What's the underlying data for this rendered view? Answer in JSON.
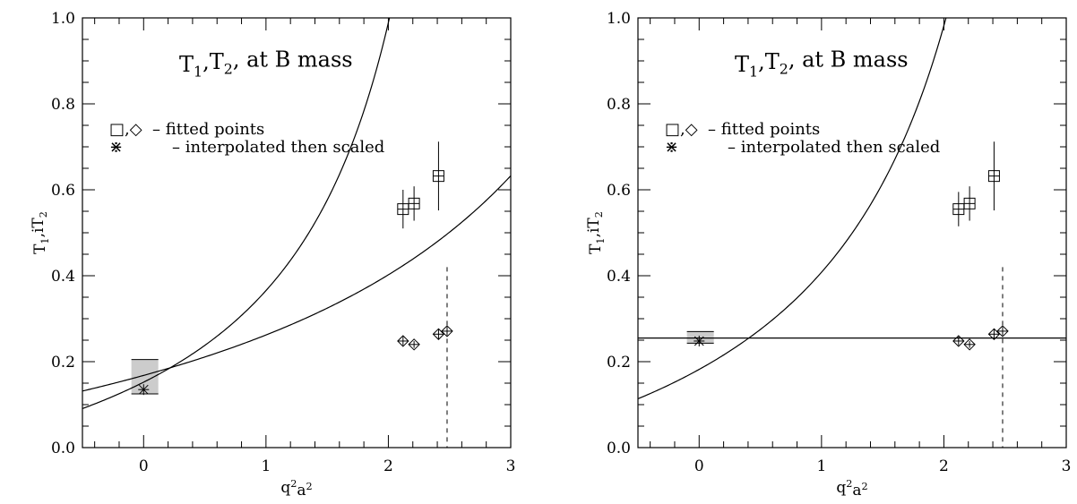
{
  "chart_data": [
    {
      "type": "scatter",
      "title_parts": [
        "T",
        "1",
        ",T",
        "2",
        ", at B mass"
      ],
      "xlabel_parts": [
        "q",
        "2",
        "a",
        "2"
      ],
      "ylabel_parts": [
        "T",
        "1",
        ",iT",
        "2"
      ],
      "xlim": [
        -0.5,
        3.0
      ],
      "ylim": [
        0.0,
        1.0
      ],
      "xticks": [
        0,
        1,
        2,
        3
      ],
      "yticks": [
        "0.0",
        "0.2",
        "0.4",
        "0.6",
        "0.8",
        "1.0"
      ],
      "legend": [
        {
          "symbol": "□,◇",
          "text": "– fitted points"
        },
        {
          "symbol": "⋇",
          "text": "– interpolated then scaled"
        }
      ],
      "series": [
        {
          "marker": "square",
          "x": [
            2.12,
            2.21,
            2.41
          ],
          "y": [
            0.555,
            0.568,
            0.632
          ],
          "err": [
            0.045,
            0.04,
            0.08
          ]
        },
        {
          "marker": "diamond",
          "x": [
            2.12,
            2.21,
            2.41,
            2.48
          ],
          "y": [
            0.248,
            0.24,
            0.264,
            0.271
          ],
          "err": [
            0.01,
            0.008,
            0.012,
            0.01
          ]
        }
      ],
      "fits": [
        {
          "kind": "pole",
          "a": 0.435,
          "m2": 3.04,
          "xmax": 2.73
        },
        {
          "kind": "pole",
          "a": 0.48,
          "m2": 6.1,
          "xmax": 3.0
        }
      ],
      "interpolated_point": {
        "x": 0.0,
        "y": 0.135
      },
      "band": {
        "x": [
          -0.1,
          0.12
        ],
        "y": [
          0.125,
          0.205
        ]
      },
      "vline_x": 2.48
    },
    {
      "type": "scatter",
      "title_parts": [
        "T",
        "1",
        ",T",
        "2",
        ", at B mass"
      ],
      "xlabel_parts": [
        "q",
        "2",
        "a",
        "2"
      ],
      "ylabel_parts": [
        "T",
        "1",
        ",iT",
        "2"
      ],
      "xlim": [
        -0.5,
        3.0
      ],
      "ylim": [
        0.0,
        1.0
      ],
      "xticks": [
        0,
        1,
        2,
        3
      ],
      "yticks": [
        "0.0",
        "0.2",
        "0.4",
        "0.6",
        "0.8",
        "1.0"
      ],
      "legend": [
        {
          "symbol": "□,◇",
          "text": "– fitted points"
        },
        {
          "symbol": "⋇",
          "text": "– interpolated then scaled"
        }
      ],
      "series": [
        {
          "marker": "square",
          "x": [
            2.12,
            2.21,
            2.41
          ],
          "y": [
            0.555,
            0.568,
            0.632
          ],
          "err": [
            0.04,
            0.04,
            0.08
          ]
        },
        {
          "marker": "diamond",
          "x": [
            2.12,
            2.21,
            2.41,
            2.48
          ],
          "y": [
            0.248,
            0.24,
            0.264,
            0.271
          ],
          "err": [
            0.01,
            0.008,
            0.012,
            0.01
          ]
        }
      ],
      "fits": [
        {
          "kind": "pole",
          "a": 0.52,
          "m2": 3.3,
          "xmax": 2.9
        },
        {
          "kind": "const",
          "c": 0.255,
          "xmax": 3.0
        }
      ],
      "interpolated_point": {
        "x": 0.0,
        "y": 0.248
      },
      "band": {
        "x": [
          -0.1,
          0.12
        ],
        "y": [
          0.243,
          0.27
        ]
      },
      "vline_x": 2.48
    }
  ]
}
